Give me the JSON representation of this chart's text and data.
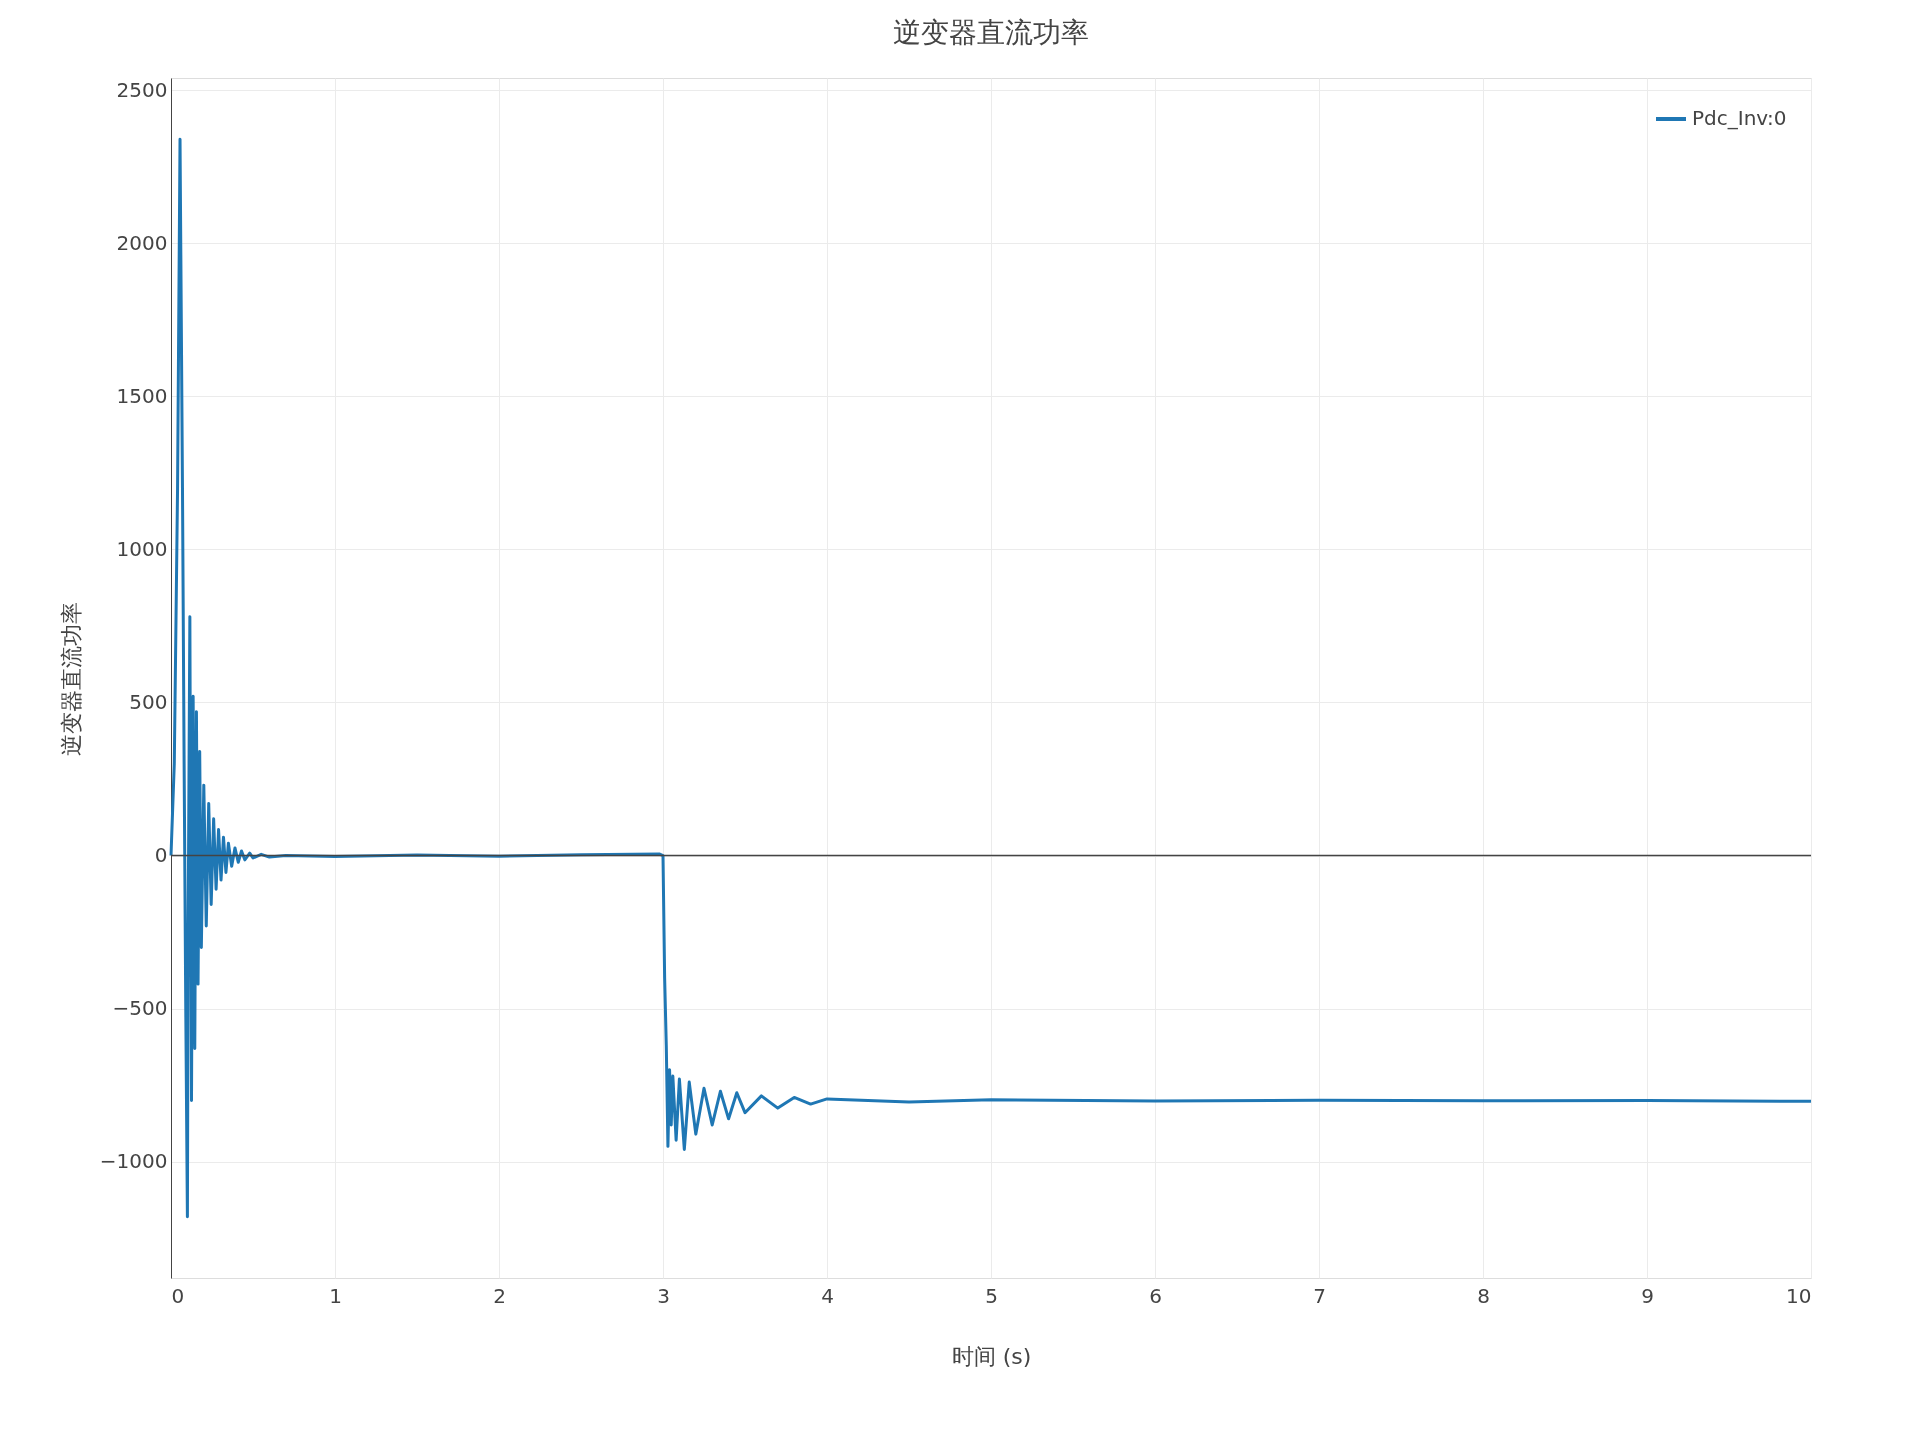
{
  "chart_data": {
    "type": "line",
    "title": "逆变器直流功率",
    "xlabel": "时间 (s)",
    "ylabel": "逆变器直流功率",
    "xlim": [
      0,
      10
    ],
    "xticks": [
      0,
      1,
      2,
      3,
      4,
      5,
      6,
      7,
      8,
      9,
      10
    ],
    "ylim": [
      -1380,
      2540
    ],
    "yticks": [
      -1000,
      -500,
      0,
      500,
      1000,
      1500,
      2000,
      2500
    ],
    "grid": true,
    "legend": "top right",
    "line_style": "solid",
    "marker": "none",
    "ref_lines": [
      {
        "axis": "y",
        "value": 0,
        "color": "#444444"
      }
    ],
    "x": [
      0,
      0.02,
      0.04,
      0.055,
      0.07,
      0.08,
      0.09,
      0.1,
      0.105,
      0.115,
      0.125,
      0.135,
      0.145,
      0.155,
      0.165,
      0.175,
      0.185,
      0.2,
      0.215,
      0.23,
      0.245,
      0.26,
      0.275,
      0.29,
      0.305,
      0.32,
      0.335,
      0.35,
      0.37,
      0.39,
      0.41,
      0.43,
      0.45,
      0.48,
      0.5,
      0.55,
      0.6,
      0.7,
      1,
      1.5,
      2,
      2.5,
      2.98,
      3.0,
      3.01,
      3.02,
      3.03,
      3.04,
      3.05,
      3.06,
      3.08,
      3.1,
      3.13,
      3.16,
      3.2,
      3.25,
      3.3,
      3.35,
      3.4,
      3.45,
      3.5,
      3.6,
      3.7,
      3.8,
      3.9,
      4.0,
      4.5,
      5,
      6,
      7,
      8,
      9,
      10
    ],
    "series": [
      {
        "name": "Pdc_Inv:0",
        "color": "#1f77b4",
        "values": [
          0,
          300,
          1200,
          2340,
          1200,
          300,
          -500,
          -1180,
          -200,
          780,
          -800,
          520,
          -630,
          470,
          -420,
          340,
          -300,
          230,
          -230,
          170,
          -160,
          120,
          -110,
          85,
          -80,
          60,
          -55,
          40,
          -35,
          25,
          -22,
          15,
          -14,
          8,
          -8,
          4,
          -5,
          0,
          -3,
          2,
          -2,
          3,
          5,
          0,
          -400,
          -620,
          -950,
          -700,
          -880,
          -720,
          -930,
          -730,
          -960,
          -740,
          -910,
          -760,
          -880,
          -770,
          -860,
          -775,
          -840,
          -785,
          -825,
          -790,
          -812,
          -795,
          -805,
          -798,
          -802,
          -799,
          -801,
          -800,
          -803
        ]
      }
    ]
  }
}
